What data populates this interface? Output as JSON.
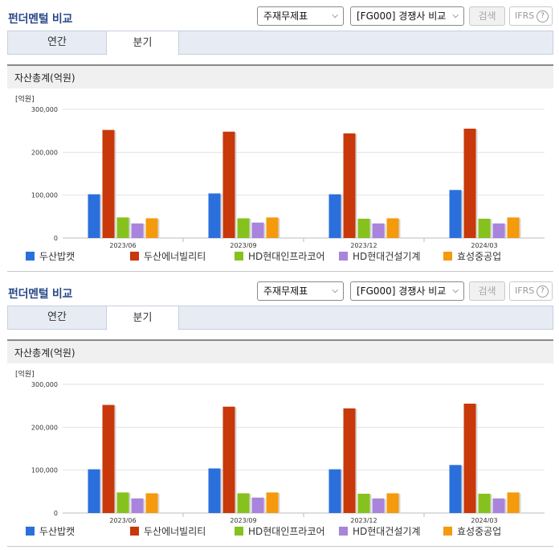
{
  "panels": [
    {
      "title": "펀더멘털 비교",
      "statement_select": "주재무제표",
      "compare_select": "[FG000] 경쟁사 비교",
      "search_label": "검색",
      "ifrs_label": "IFRS",
      "help_glyph": "?",
      "tabs": [
        "연간",
        "분기"
      ],
      "active_tab": "분기",
      "section_title": "자산총계(억원)"
    },
    {
      "title": "펀더멘털 비교",
      "statement_select": "주재무제표",
      "compare_select": "[FG000] 경쟁사 비교",
      "search_label": "검색",
      "ifrs_label": "IFRS",
      "help_glyph": "?",
      "tabs": [
        "연간",
        "분기"
      ],
      "active_tab": "분기",
      "section_title": "자산총계(억원)"
    }
  ],
  "icons": {
    "dropdown": "chevron-down-icon",
    "help": "question-circle-icon"
  },
  "chart_data": [
    {
      "type": "bar",
      "title": "자산총계(억원)",
      "unit_label": "[억원]",
      "categories": [
        "2023/06",
        "2023/09",
        "2023/12",
        "2024/03"
      ],
      "ylim": [
        0,
        300000
      ],
      "yticks": [
        "0",
        "100,000",
        "200,000",
        "300,000"
      ],
      "ytick_values": [
        0,
        100000,
        200000,
        300000
      ],
      "grid": true,
      "legend_position": "bottom",
      "series": [
        {
          "name": "두산밥캣",
          "color": "#2b6fdc",
          "values": [
            102000,
            104000,
            102000,
            112000
          ]
        },
        {
          "name": "두산에너빌리티",
          "color": "#c8380a",
          "values": [
            252000,
            248000,
            244000,
            255000
          ]
        },
        {
          "name": "HD현대인프라코어",
          "color": "#86c21e",
          "values": [
            48000,
            46000,
            45000,
            45000
          ]
        },
        {
          "name": "HD현대건설기계",
          "color": "#a884dc",
          "values": [
            34000,
            36000,
            34000,
            34000
          ]
        },
        {
          "name": "효성중공업",
          "color": "#f49a0c",
          "values": [
            46000,
            48000,
            46000,
            48000
          ]
        }
      ]
    },
    {
      "type": "bar",
      "title": "자산총계(억원)",
      "unit_label": "[억원]",
      "categories": [
        "2023/06",
        "2023/09",
        "2023/12",
        "2024/03"
      ],
      "ylim": [
        0,
        300000
      ],
      "yticks": [
        "0",
        "100,000",
        "200,000",
        "300,000"
      ],
      "ytick_values": [
        0,
        100000,
        200000,
        300000
      ],
      "grid": true,
      "legend_position": "bottom",
      "series": [
        {
          "name": "두산밥캣",
          "color": "#2b6fdc",
          "values": [
            102000,
            104000,
            102000,
            112000
          ]
        },
        {
          "name": "두산에너빌리티",
          "color": "#c8380a",
          "values": [
            252000,
            248000,
            244000,
            255000
          ]
        },
        {
          "name": "HD현대인프라코어",
          "color": "#86c21e",
          "values": [
            48000,
            46000,
            45000,
            45000
          ]
        },
        {
          "name": "HD현대건설기계",
          "color": "#a884dc",
          "values": [
            34000,
            36000,
            34000,
            34000
          ]
        },
        {
          "name": "효성중공업",
          "color": "#f49a0c",
          "values": [
            46000,
            48000,
            46000,
            48000
          ]
        }
      ]
    }
  ]
}
